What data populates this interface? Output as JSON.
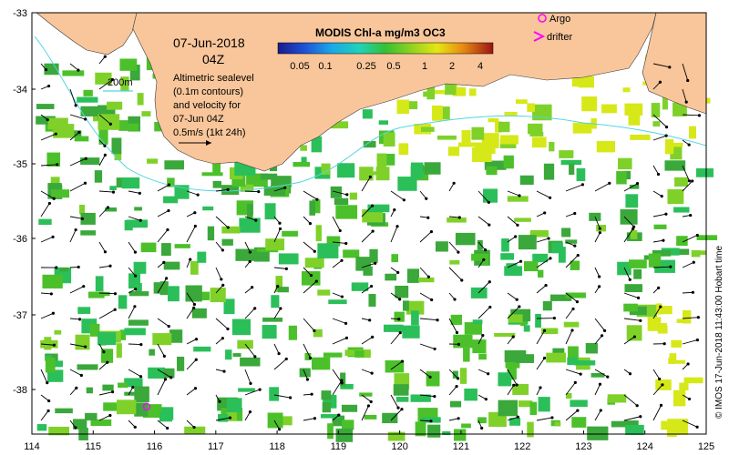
{
  "map": {
    "date_title": "07-Jun-2018",
    "time_title": "04Z",
    "sealevel_notes": [
      "Altimetric sealevel",
      "(0.1m contours)",
      "and velocity for",
      "07-Jun 04Z",
      "0.5m/s (1kt 24h)"
    ],
    "isobath_label": "200m",
    "colorbar": {
      "title": "MODIS Chl-a mg/m3 OC3",
      "ticks": [
        "0.05",
        "0.1",
        "0.25",
        "0.5",
        "1",
        "2",
        "4"
      ]
    },
    "legend": {
      "argo_label": "Argo",
      "drifter_label": "drifter"
    },
    "credit": "© IMOS 17-Jun-2018 11:43:00 Hobart time",
    "axes": {
      "lon_ticks": [
        "114",
        "115",
        "116",
        "117",
        "118",
        "119",
        "120",
        "121",
        "122",
        "123",
        "124",
        "125"
      ],
      "lat_ticks": [
        "-33",
        "-34",
        "-35",
        "-36",
        "-37",
        "-38"
      ]
    },
    "colors": {
      "land": "#f8c69a",
      "chl_low": "#3aa83a",
      "chl_mid": "#7fd12a",
      "chl_high": "#d6e818",
      "isobath": "#4fd6e0",
      "argo": "#ff00ff",
      "drifter": "#ff00ff"
    }
  }
}
